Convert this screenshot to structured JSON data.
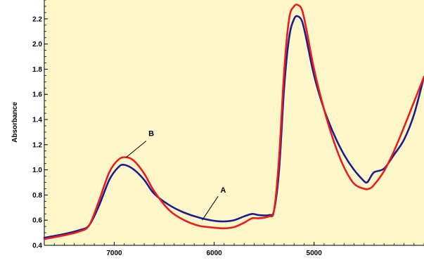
{
  "chart_data": {
    "type": "line",
    "title": "",
    "xlabel": "",
    "ylabel": "Absorbance",
    "x_reversed": true,
    "xlim": [
      7700,
      3900
    ],
    "ylim": [
      0.4,
      2.35
    ],
    "x_ticks": [
      7000,
      6000,
      5000
    ],
    "x_tick_labels": [
      "7000",
      "6000",
      "5000"
    ],
    "y_ticks": [
      0.4,
      0.6,
      0.8,
      1.0,
      1.2,
      1.4,
      1.6,
      1.8,
      2.0,
      2.2
    ],
    "y_tick_labels": [
      "0.4",
      "0.6",
      "0.8",
      "1.0",
      "1.2",
      "1.4",
      "1.6",
      "1.8",
      "2.0",
      "2.2"
    ],
    "plot_background": "#fdf6c8",
    "grid": false,
    "legend": "none",
    "series": [
      {
        "color": "#1c1c8c",
        "x": [
          7700,
          7500,
          7350,
          7250,
          7150,
          7050,
          6960,
          6900,
          6800,
          6700,
          6600,
          6450,
          6300,
          6150,
          6000,
          5900,
          5800,
          5700,
          5620,
          5550,
          5450,
          5400,
          5350,
          5300,
          5250,
          5200,
          5160,
          5120,
          5080,
          5000,
          4900,
          4800,
          4700,
          4600,
          4500,
          4470,
          4450,
          4400,
          4300,
          4200,
          4100,
          4000,
          3900
        ],
        "values": [
          0.46,
          0.49,
          0.52,
          0.56,
          0.72,
          0.92,
          1.02,
          1.04,
          1.0,
          0.92,
          0.81,
          0.72,
          0.66,
          0.62,
          0.595,
          0.59,
          0.6,
          0.63,
          0.65,
          0.64,
          0.64,
          0.68,
          1.0,
          1.65,
          2.05,
          2.2,
          2.22,
          2.18,
          2.05,
          1.75,
          1.48,
          1.28,
          1.12,
          1.0,
          0.91,
          0.9,
          0.92,
          0.98,
          1.01,
          1.12,
          1.24,
          1.44,
          1.74
        ]
      },
      {
        "color": "#e81e1e",
        "x": [
          7700,
          7500,
          7350,
          7250,
          7150,
          7050,
          6960,
          6880,
          6800,
          6700,
          6600,
          6450,
          6300,
          6150,
          6000,
          5900,
          5800,
          5700,
          5620,
          5550,
          5450,
          5400,
          5350,
          5300,
          5250,
          5200,
          5160,
          5120,
          5080,
          5000,
          4900,
          4800,
          4700,
          4600,
          4500,
          4450,
          4400,
          4300,
          4200,
          4100,
          4000,
          3900
        ],
        "values": [
          0.45,
          0.48,
          0.51,
          0.56,
          0.76,
          0.98,
          1.08,
          1.1,
          1.07,
          0.97,
          0.83,
          0.68,
          0.6,
          0.555,
          0.54,
          0.535,
          0.545,
          0.58,
          0.615,
          0.615,
          0.63,
          0.68,
          1.1,
          1.78,
          2.2,
          2.3,
          2.31,
          2.27,
          2.13,
          1.8,
          1.48,
          1.22,
          1.02,
          0.89,
          0.85,
          0.85,
          0.88,
          0.99,
          1.15,
          1.34,
          1.54,
          1.74
        ]
      }
    ],
    "annotations": [
      {
        "label": "A",
        "text_x": 5910,
        "text_y": 0.82,
        "line_from": [
          5960,
          0.79
        ],
        "line_to": [
          6120,
          0.6
        ]
      },
      {
        "label": "B",
        "text_x": 6630,
        "text_y": 1.27,
        "line_from": [
          6680,
          1.23
        ],
        "line_to": [
          6880,
          1.1
        ]
      }
    ]
  }
}
